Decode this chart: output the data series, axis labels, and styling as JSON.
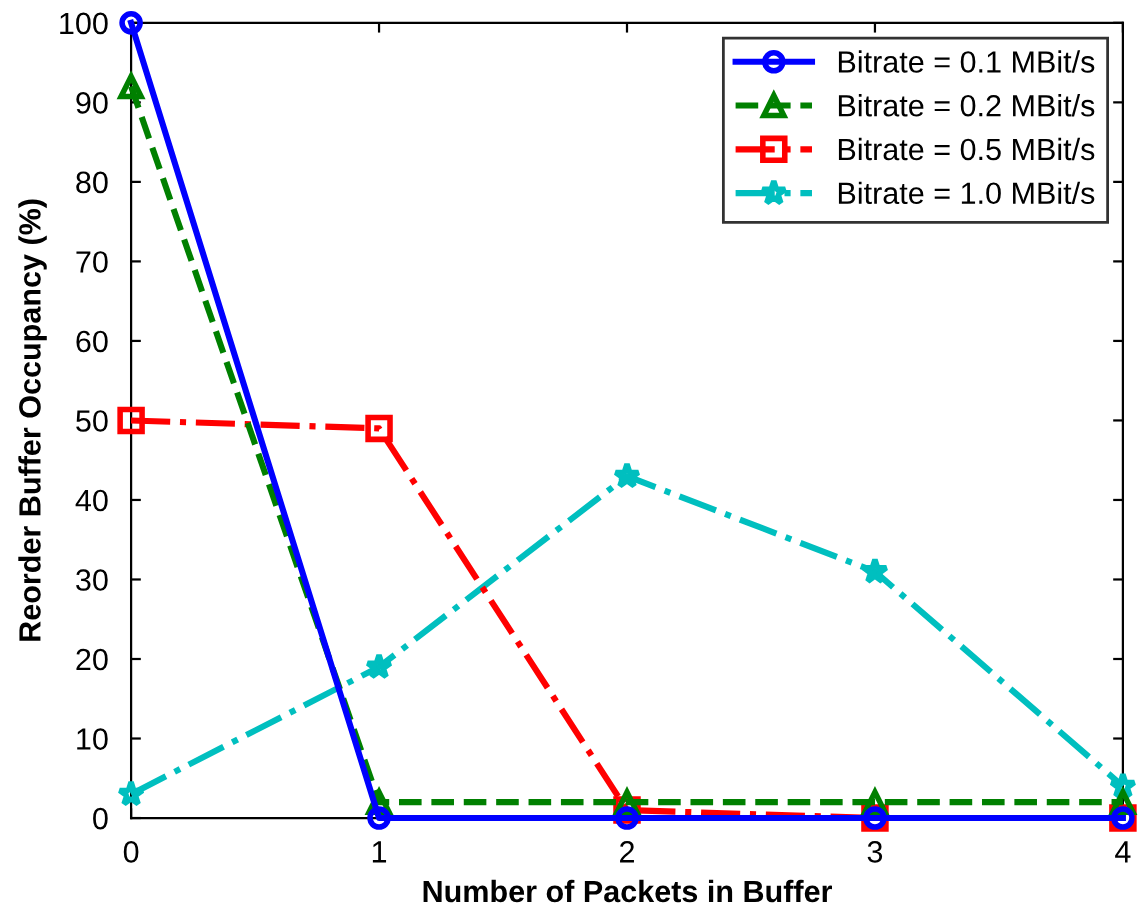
{
  "chart_data": {
    "type": "line",
    "xlabel": "Number of Packets in Buffer",
    "ylabel": "Reorder Buffer Occupancy (%)",
    "x": [
      0,
      1,
      2,
      3,
      4
    ],
    "series": [
      {
        "name": "Bitrate = 0.1 MBit/s",
        "color": "#0000ff",
        "values": [
          100,
          0,
          0,
          0,
          0
        ],
        "marker": "circle",
        "line_style": "solid"
      },
      {
        "name": "Bitrate = 0.2 MBit/s",
        "color": "#008000",
        "values": [
          92,
          2,
          2,
          2,
          2
        ],
        "marker": "triangle",
        "line_style": "dashed"
      },
      {
        "name": "Bitrate = 0.5 MBit/s",
        "color": "#ff0000",
        "values": [
          50,
          49,
          1,
          0,
          0
        ],
        "marker": "square",
        "line_style": "dashdot"
      },
      {
        "name": "Bitrate = 1.0 MBit/s",
        "color": "#00bfbf",
        "values": [
          3,
          19,
          43,
          31,
          4
        ],
        "marker": "star",
        "line_style": "dashdot"
      }
    ],
    "xlim": [
      0,
      4
    ],
    "xticks": [
      0,
      1,
      2,
      3,
      4
    ],
    "ylim": [
      0,
      100
    ],
    "yticks": [
      0,
      10,
      20,
      30,
      40,
      50,
      60,
      70,
      80,
      90,
      100
    ],
    "grid": false,
    "legend": "top right"
  }
}
